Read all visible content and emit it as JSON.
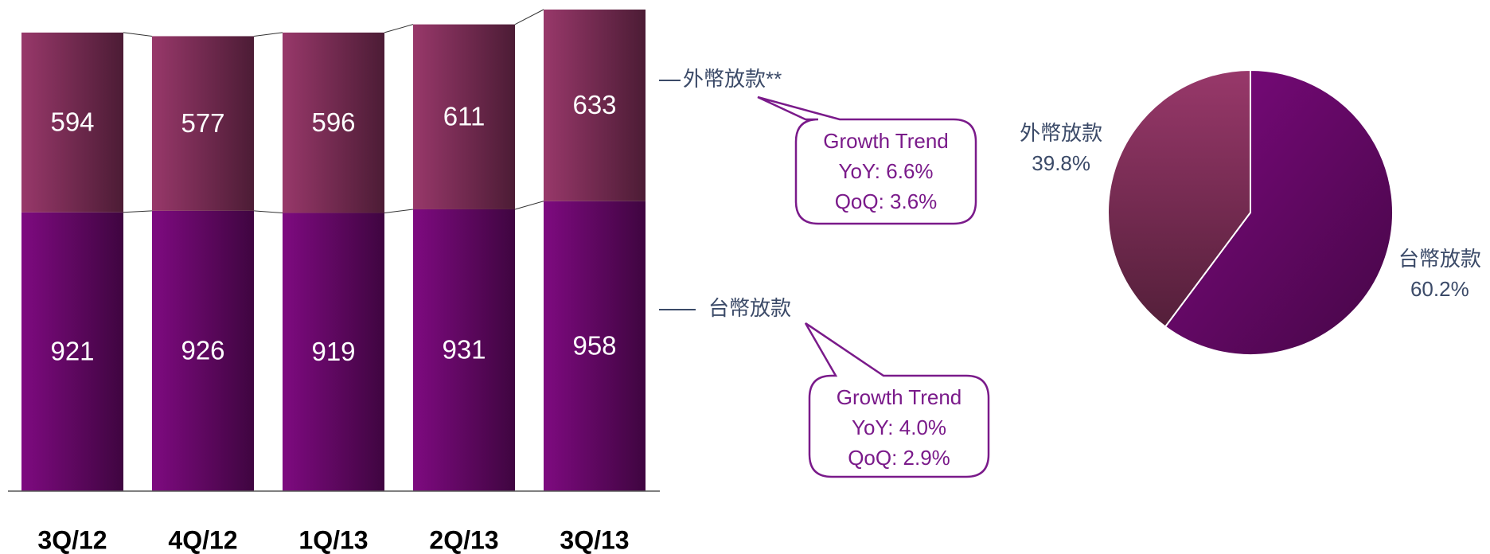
{
  "chart_data": [
    {
      "type": "bar",
      "stacked": true,
      "categories": [
        "3Q/12",
        "4Q/12",
        "1Q/13",
        "2Q/13",
        "3Q/13"
      ],
      "series": [
        {
          "name": "台幣放款",
          "color": "#7e0a80",
          "values": [
            921,
            926,
            919,
            931,
            958
          ]
        },
        {
          "name": "外幣放款**",
          "color": "#98386a",
          "values": [
            594,
            577,
            596,
            611,
            633
          ]
        }
      ],
      "annotations": [
        {
          "lines": [
            "Growth Trend",
            "YoY: 6.6%",
            "QoQ: 3.6%"
          ]
        },
        {
          "lines": [
            "Growth Trend",
            "YoY: 4.0%",
            "QoQ: 2.9%"
          ]
        }
      ]
    },
    {
      "type": "pie",
      "categories": [
        "台幣放款",
        "外幣放款"
      ],
      "values": [
        60.2,
        39.8
      ],
      "value_labels": [
        "60.2%",
        "39.8%"
      ],
      "colors": [
        "#7e0a80",
        "#98386a"
      ]
    }
  ]
}
